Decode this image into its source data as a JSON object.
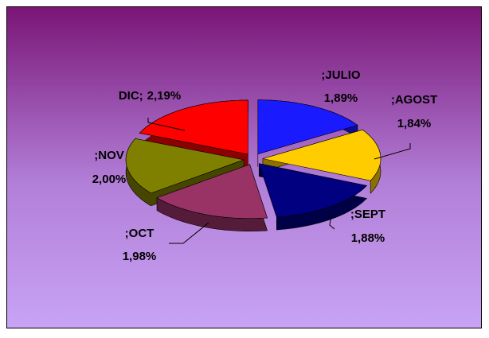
{
  "chart_data": {
    "type": "pie3d",
    "categories": [
      ";JULIO",
      ";AGOST",
      ";SEPT",
      ";OCT",
      ";NOV",
      "DIC;"
    ],
    "values": [
      1.89,
      1.84,
      1.88,
      1.98,
      2.0,
      2.19
    ],
    "value_labels": [
      "1,89%",
      "1,84%",
      "1,88%",
      "1,98%",
      "2,00%",
      "2,19%"
    ],
    "colors": [
      "#1a1aff",
      "#ffcc00",
      "#000080",
      "#993366",
      "#808000",
      "#ff0000"
    ]
  }
}
